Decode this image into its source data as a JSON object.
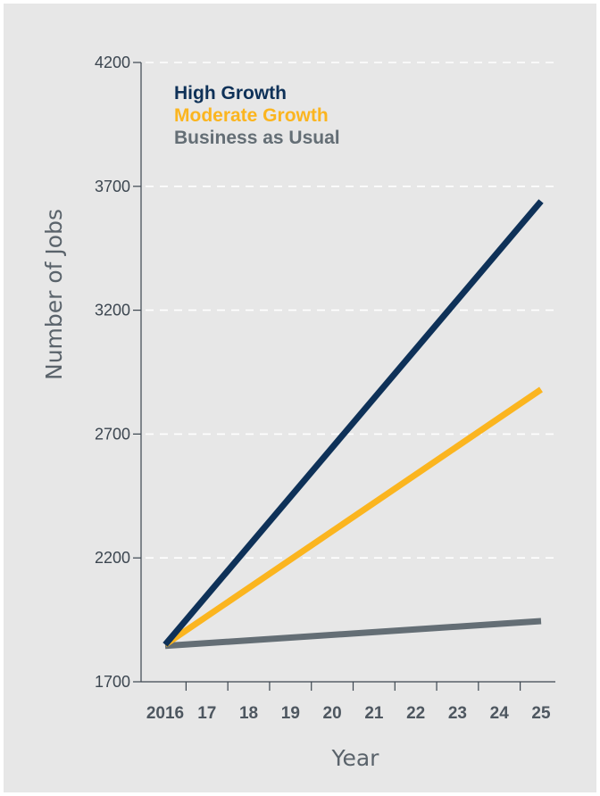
{
  "chart_data": {
    "type": "line",
    "title": "",
    "xlabel": "Year",
    "ylabel": "Number of Jobs",
    "x": [
      2016,
      2025
    ],
    "x_tick_labels": [
      "2016",
      "17",
      "18",
      "19",
      "20",
      "21",
      "22",
      "23",
      "24",
      "25"
    ],
    "y_ticks": [
      1700,
      2200,
      2700,
      3200,
      3700,
      4200
    ],
    "ylim": [
      1700,
      4200
    ],
    "grid": "horizontal dashed",
    "legend_position": "top-left",
    "series": [
      {
        "name": "High Growth",
        "color": "#0e3158",
        "values": [
          1850,
          3640
        ]
      },
      {
        "name": "Moderate Growth",
        "color": "#fbb51f",
        "values": [
          1850,
          2880
        ]
      },
      {
        "name": "Business as Usual",
        "color": "#646e75",
        "values": [
          1845,
          1945
        ]
      }
    ]
  }
}
